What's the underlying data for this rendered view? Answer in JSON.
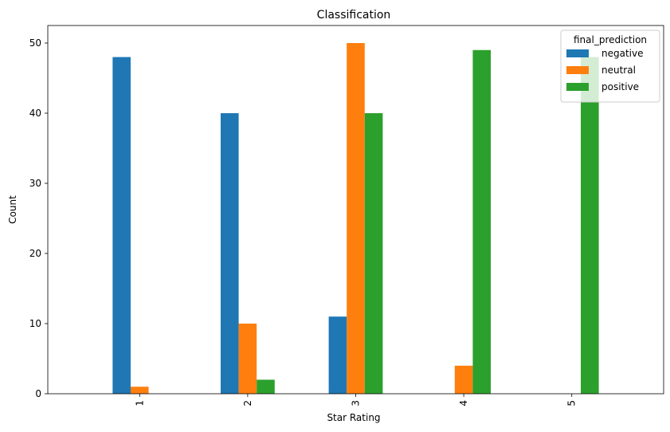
{
  "chart_data": {
    "type": "bar",
    "title": "Classification",
    "xlabel": "Star Rating",
    "ylabel": "Count",
    "categories": [
      "1",
      "2",
      "3",
      "4",
      "5"
    ],
    "series": [
      {
        "name": "negative",
        "color": "#1f77b4",
        "values": [
          48,
          40,
          11,
          0,
          0
        ]
      },
      {
        "name": "neutral",
        "color": "#ff7f0e",
        "values": [
          1,
          10,
          50,
          4,
          0
        ]
      },
      {
        "name": "positive",
        "color": "#2ca02c",
        "values": [
          0,
          2,
          40,
          49,
          48
        ]
      }
    ],
    "ylim": [
      0,
      52.5
    ],
    "yticks": [
      0,
      10,
      20,
      30,
      40,
      50
    ],
    "legend_title": "final_prediction",
    "legend_position": "top-right",
    "grid": false
  }
}
